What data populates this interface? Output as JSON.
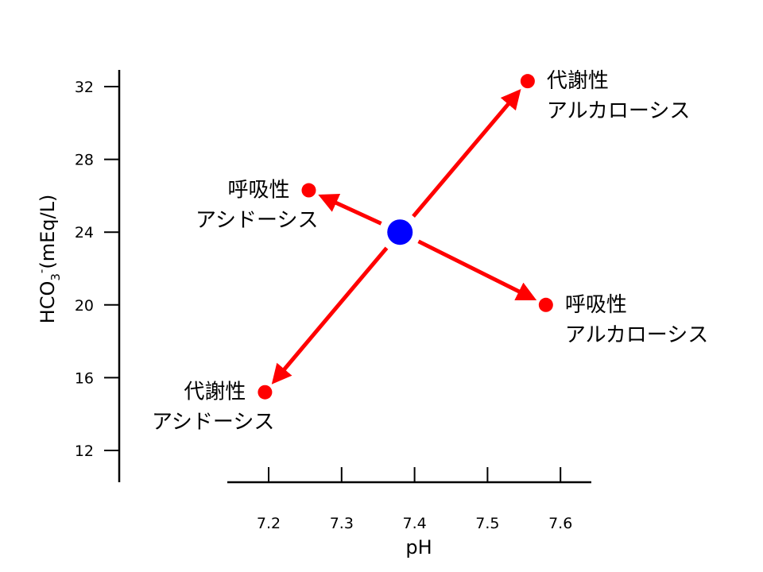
{
  "chart_data": {
    "type": "scatter",
    "xlabel": "pH",
    "ylabel_main": "HCO",
    "ylabel_sub": "3",
    "ylabel_sup": "-",
    "ylabel_tail": "(mEq/L)",
    "xlim": [
      7.15,
      7.65
    ],
    "ylim": [
      10,
      33
    ],
    "x_ticks": [
      7.2,
      7.3,
      7.4,
      7.5,
      7.6
    ],
    "y_ticks": [
      12,
      16,
      20,
      24,
      28,
      32
    ],
    "center": {
      "x": 7.38,
      "y": 24,
      "color": "#0000ff"
    },
    "arrow_color": "#ff0000",
    "point_color": "#ff0000",
    "points": [
      {
        "x": 7.555,
        "y": 32.3,
        "line1": "代謝性",
        "line2": "アルカローシス",
        "anchor": "start"
      },
      {
        "x": 7.255,
        "y": 26.3,
        "line1": "呼吸性",
        "line2": "アシドーシス",
        "anchor": "end"
      },
      {
        "x": 7.58,
        "y": 20.0,
        "line1": "呼吸性",
        "line2": "アルカローシス",
        "anchor": "start"
      },
      {
        "x": 7.195,
        "y": 15.2,
        "line1": "代謝性",
        "line2": "アシドーシス",
        "anchor": "end"
      }
    ]
  }
}
